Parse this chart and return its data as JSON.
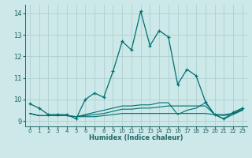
{
  "xlabel": "Humidex (Indice chaleur)",
  "background_color": "#cce8e8",
  "grid_color": "#b0d0d0",
  "line_color": "#007070",
  "xlim": [
    -0.5,
    23.5
  ],
  "ylim": [
    8.75,
    14.4
  ],
  "yticks": [
    9,
    10,
    11,
    12,
    13,
    14
  ],
  "xtick_labels": [
    "0",
    "1",
    "2",
    "3",
    "4",
    "5",
    "6",
    "7",
    "8",
    "9",
    "10",
    "11",
    "12",
    "13",
    "14",
    "15",
    "16",
    "17",
    "18",
    "19",
    "20",
    "21",
    "22",
    "23"
  ],
  "series_main": [
    9.8,
    9.6,
    9.3,
    9.3,
    9.3,
    9.1,
    10.0,
    10.3,
    10.1,
    11.3,
    12.7,
    12.3,
    14.1,
    12.5,
    13.2,
    12.9,
    10.7,
    11.4,
    11.1,
    9.9,
    9.3,
    9.1,
    9.4,
    9.6
  ],
  "series_flat1": [
    9.35,
    9.25,
    9.25,
    9.25,
    9.25,
    9.2,
    9.2,
    9.2,
    9.25,
    9.3,
    9.35,
    9.35,
    9.35,
    9.35,
    9.35,
    9.35,
    9.35,
    9.35,
    9.35,
    9.35,
    9.3,
    9.3,
    9.35,
    9.5
  ],
  "series_flat2": [
    9.35,
    9.25,
    9.25,
    9.25,
    9.25,
    9.2,
    9.25,
    9.3,
    9.35,
    9.45,
    9.55,
    9.55,
    9.6,
    9.6,
    9.65,
    9.7,
    9.7,
    9.7,
    9.7,
    9.7,
    9.3,
    9.25,
    9.35,
    9.55
  ],
  "series_flat3": [
    9.35,
    9.25,
    9.25,
    9.25,
    9.25,
    9.2,
    9.3,
    9.4,
    9.5,
    9.6,
    9.7,
    9.7,
    9.75,
    9.75,
    9.85,
    9.85,
    9.3,
    9.5,
    9.6,
    9.85,
    9.3,
    9.1,
    9.3,
    9.5
  ]
}
